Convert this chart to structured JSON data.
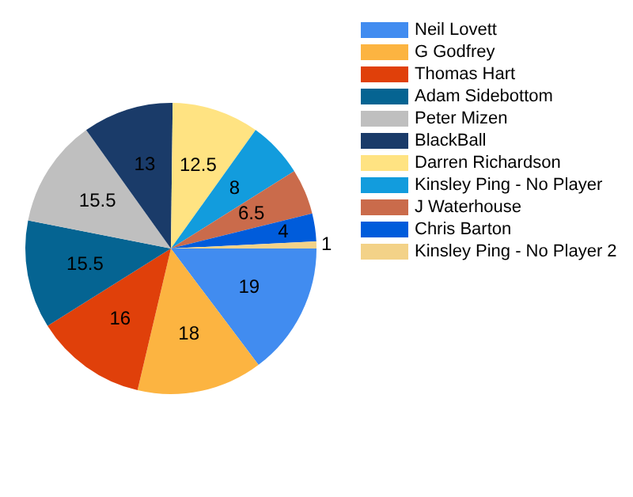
{
  "chart_data": {
    "type": "pie",
    "categories": [
      "Neil Lovett",
      "G Godfrey",
      "Thomas Hart",
      "Adam Sidebottom",
      "Peter Mizen",
      "BlackBall",
      "Darren Richardson",
      "Kinsley Ping - No Player",
      "J Waterhouse",
      "Chris Barton",
      "Kinsley Ping - No Player 2"
    ],
    "values": [
      19,
      18,
      16,
      15.5,
      15.5,
      13,
      12.5,
      8,
      6.5,
      4,
      1
    ],
    "colors": [
      "#418cf0",
      "#fcb441",
      "#e0400a",
      "#056492",
      "#bfbfbf",
      "#1a3b69",
      "#ffe382",
      "#129cdd",
      "#ca6b4b",
      "#005cdb",
      "#f3d288"
    ],
    "data_labels": true,
    "legend": "top right"
  }
}
